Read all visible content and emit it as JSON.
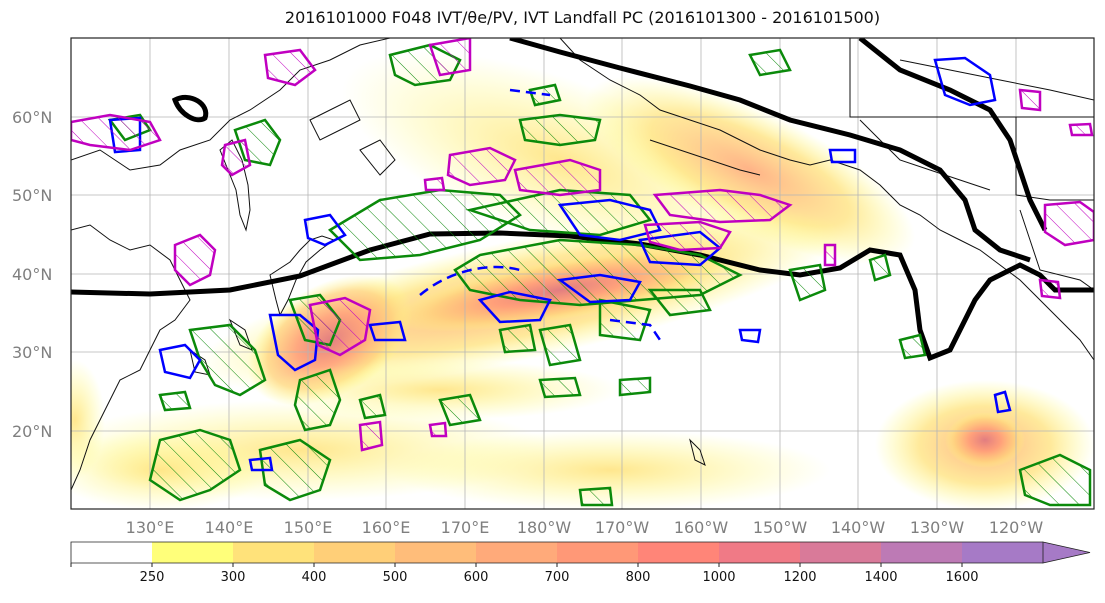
{
  "title": "2016101000 F048 IVT/θe/PV, IVT Landfall PC (2016101300 - 2016101500)",
  "lat_labels": [
    "60°N",
    "50°N",
    "40°N",
    "30°N",
    "20°N"
  ],
  "lon_labels": [
    "130°E",
    "140°E",
    "150°E",
    "160°E",
    "170°E",
    "180°W",
    "170°W",
    "160°W",
    "150°W",
    "140°W",
    "130°W",
    "120°W"
  ],
  "colorbar": {
    "ticks": [
      "250",
      "300",
      "400",
      "500",
      "600",
      "700",
      "800",
      "1000",
      "1200",
      "1400",
      "1600"
    ],
    "colors": [
      "#ffffff",
      "#ffff7a",
      "#ffe27a",
      "#ffcf78",
      "#ffbd7a",
      "#ffaa7a",
      "#ff9877",
      "#ff8578",
      "#f07a86",
      "#d97a99",
      "#bd7ab5",
      "#a67ac6"
    ],
    "extend": "max"
  },
  "contour_colors": {
    "ivt_fill": "#ffc870",
    "pc_line": "#000000",
    "theta_e": "#0b8a0b",
    "pv": "#0000ff",
    "pv_alt": "#c000c0"
  }
}
